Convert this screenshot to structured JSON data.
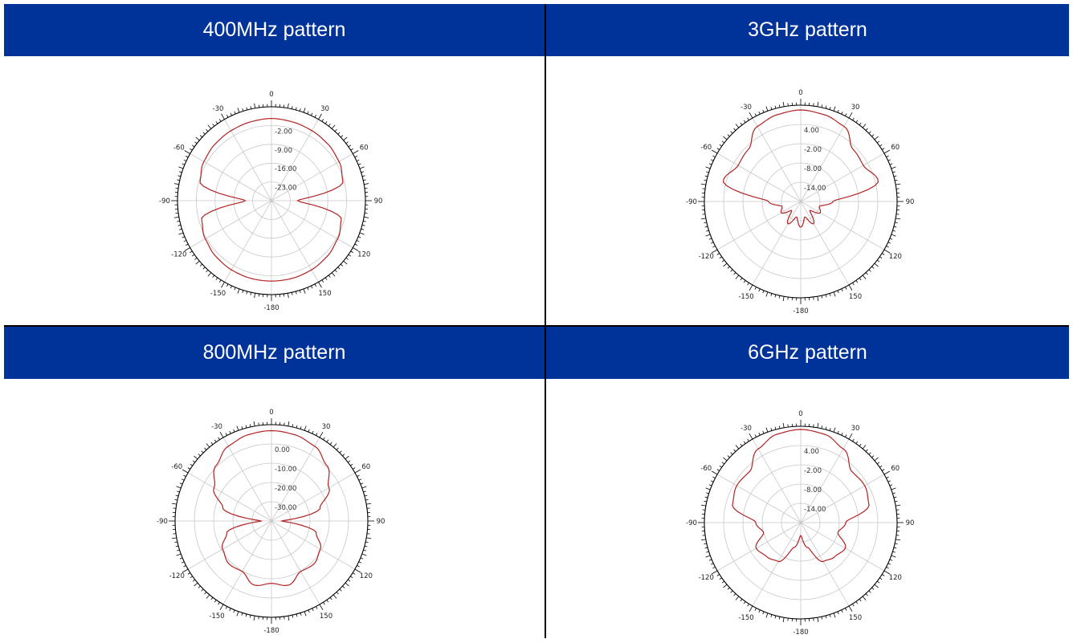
{
  "colors": {
    "header_bg": "#003399",
    "header_text": "#ffffff",
    "trace": "#b22222",
    "grid": "#c8c8c8",
    "outline": "#000000"
  },
  "chart_data": [
    {
      "type": "polar",
      "title": "400MHz pattern",
      "angle_ticks": [
        "0",
        "30",
        "60",
        "90",
        "120",
        "150",
        "-180",
        "-150",
        "-120",
        "-90",
        "-60",
        "-30"
      ],
      "ring_labels": [
        "-2.00",
        "-9.00",
        "-16.00",
        "-23.00"
      ],
      "r_range": [
        -30,
        5
      ],
      "angles_deg": [
        0,
        15,
        30,
        45,
        60,
        75,
        90,
        105,
        120,
        135,
        150,
        165,
        180
      ],
      "gain_db": [
        0,
        -0.3,
        -0.6,
        -1.0,
        -1.8,
        -3.5,
        -24,
        -4.2,
        -2.5,
        -1.5,
        -1.0,
        -0.8,
        -0.8
      ]
    },
    {
      "type": "polar",
      "title": "3GHz pattern",
      "angle_ticks": [
        "0",
        "30",
        "60",
        "90",
        "120",
        "150",
        "-180",
        "-150",
        "-120",
        "-90",
        "-60",
        "-30"
      ],
      "ring_labels": [
        "4.00",
        "-2.00",
        "-8.00",
        "-14.00"
      ],
      "r_range": [
        -20,
        10
      ],
      "angles_deg": [
        0,
        15,
        30,
        45,
        60,
        75,
        90,
        105,
        120,
        135,
        150,
        165,
        180
      ],
      "gain_db": [
        8.5,
        8.0,
        7.0,
        3.0,
        2.5,
        5.0,
        -10,
        -14,
        -13,
        -16,
        -12,
        -15,
        -12
      ]
    },
    {
      "type": "polar",
      "title": "800MHz pattern",
      "angle_ticks": [
        "0",
        "30",
        "60",
        "90",
        "120",
        "150",
        "-180",
        "-150",
        "-120",
        "-90",
        "-60",
        "-30"
      ],
      "ring_labels": [
        "0.00",
        "-10.00",
        "-20.00",
        "-30.00"
      ],
      "r_range": [
        -40,
        5
      ],
      "angles_deg": [
        0,
        15,
        30,
        45,
        60,
        75,
        90,
        105,
        120,
        135,
        150,
        165,
        180
      ],
      "gain_db": [
        2.0,
        1.5,
        0,
        -4,
        -10,
        -18,
        -38,
        -20,
        -15,
        -13,
        -14,
        -10,
        -12
      ]
    },
    {
      "type": "polar",
      "title": "6GHz pattern",
      "angle_ticks": [
        "0",
        "30",
        "60",
        "90",
        "120",
        "150",
        "-180",
        "-150",
        "-120",
        "-90",
        "-60",
        "-30"
      ],
      "ring_labels": [
        "4.00",
        "-2.00",
        "-8.00",
        "-14.00"
      ],
      "r_range": [
        -20,
        10
      ],
      "angles_deg": [
        0,
        15,
        30,
        45,
        60,
        75,
        90,
        105,
        120,
        135,
        150,
        165,
        180
      ],
      "gain_db": [
        9.0,
        8.5,
        6.5,
        2.5,
        3.0,
        2.0,
        -6,
        -8,
        -4,
        -5,
        -6,
        -12,
        -16
      ]
    }
  ]
}
